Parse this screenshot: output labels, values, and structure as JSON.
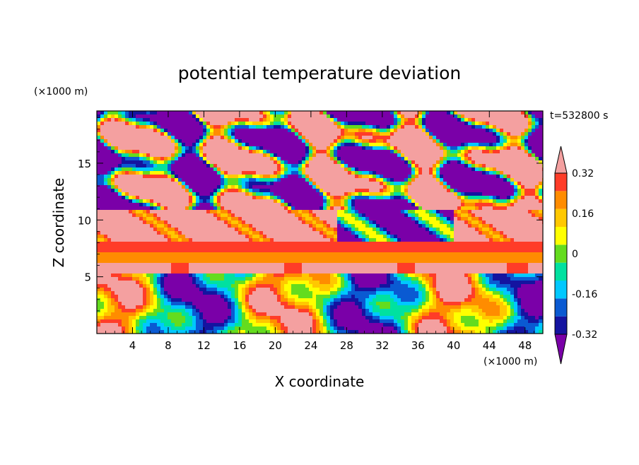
{
  "chart_data": {
    "type": "heatmap",
    "title": "potential temperature deviation",
    "time_label": "t=532800 s",
    "xlabel": "X coordinate",
    "ylabel": "Z coordinate",
    "x_unit": "(×1000 m)",
    "y_unit": "(×1000 m)",
    "xlim": [
      0,
      50
    ],
    "ylim": [
      0,
      19.6
    ],
    "x_ticks": [
      4,
      8,
      12,
      16,
      20,
      24,
      28,
      32,
      36,
      40,
      44,
      48
    ],
    "y_ticks": [
      5,
      10,
      15
    ],
    "colorbar": {
      "levels": [
        -0.4,
        -0.32,
        -0.24,
        -0.16,
        -0.08,
        0,
        0.08,
        0.16,
        0.24,
        0.32,
        0.4
      ],
      "tick_labels": [
        "0.32",
        "0.16",
        "0",
        "-0.16",
        "-0.32"
      ],
      "tick_values": [
        0.32,
        0.16,
        0,
        -0.16,
        -0.32
      ],
      "colors": [
        "#7a00a8",
        "#1414a0",
        "#0a5ad2",
        "#00c8ff",
        "#00e1a0",
        "#64dc1e",
        "#ffff00",
        "#ffc800",
        "#ff8c00",
        "#ff3c28",
        "#f4a0a0"
      ],
      "extend": "both"
    },
    "layers": [
      {
        "z_range": [
          7.0,
          7.8
        ],
        "value": 0.3
      },
      {
        "z_range": [
          6.1,
          7.0
        ],
        "value": 0.2
      },
      {
        "z_range": [
          5.2,
          6.1
        ],
        "value": 0.45
      },
      {
        "z_range": [
          8.0,
          11.0
        ],
        "value": 0.45
      },
      {
        "z_range": [
          11.0,
          19.6
        ],
        "value": -0.45
      }
    ]
  }
}
